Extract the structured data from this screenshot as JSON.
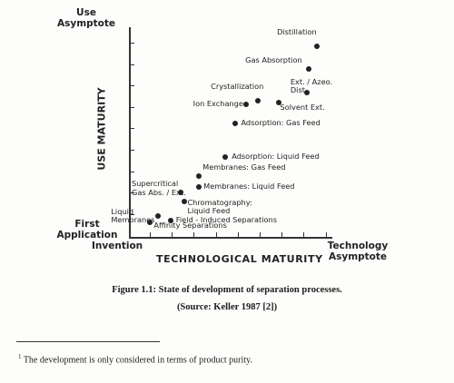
{
  "figure": {
    "y_top_label": "Use\nAsymptote",
    "y_axis_title": "USE MATURITY",
    "y_bottom_label": "First\nApplication",
    "x_left_label": "Invention",
    "x_axis_title": "TECHNOLOGICAL MATURITY",
    "x_right_label": "Technology\nAsymptote",
    "points": [
      {
        "name": "Distillation",
        "x": 0.92,
        "y": 0.91
      },
      {
        "name": "Gas Absorption",
        "x": 0.88,
        "y": 0.8
      },
      {
        "name": "Ext. / Azeo.\nDist.",
        "x": 0.87,
        "y": 0.69
      },
      {
        "name": "Crystallization",
        "x": 0.63,
        "y": 0.65
      },
      {
        "name": "Ion Exchange",
        "x": 0.57,
        "y": 0.63
      },
      {
        "name": "Solvent Ext.",
        "x": 0.73,
        "y": 0.64
      },
      {
        "name": "Adsorption:  Gas Feed",
        "x": 0.52,
        "y": 0.54
      },
      {
        "name": "Adsorption:  Liquid Feed",
        "x": 0.47,
        "y": 0.38
      },
      {
        "name": "Membranes:  Gas Feed",
        "x": 0.34,
        "y": 0.29
      },
      {
        "name": "Membranes:  Liquid Feed",
        "x": 0.34,
        "y": 0.24
      },
      {
        "name": "Supercritical\nGas Abs. / Ext.",
        "x": 0.25,
        "y": 0.21
      },
      {
        "name": "Chromatography:\nLiquid Feed",
        "x": 0.27,
        "y": 0.17
      },
      {
        "name": "Liquid\nMembranes",
        "x": 0.14,
        "y": 0.1
      },
      {
        "name": "Field - Induced Separations",
        "x": 0.2,
        "y": 0.08
      },
      {
        "name": "Affinity  Separations",
        "x": 0.1,
        "y": 0.07
      }
    ]
  },
  "caption": "Figure 1.1: State of development of separation processes.",
  "source": "(Source: Keller 1987 [2])",
  "footnote": {
    "marker": "1",
    "text": "The development is only considered in terms of product purity."
  }
}
